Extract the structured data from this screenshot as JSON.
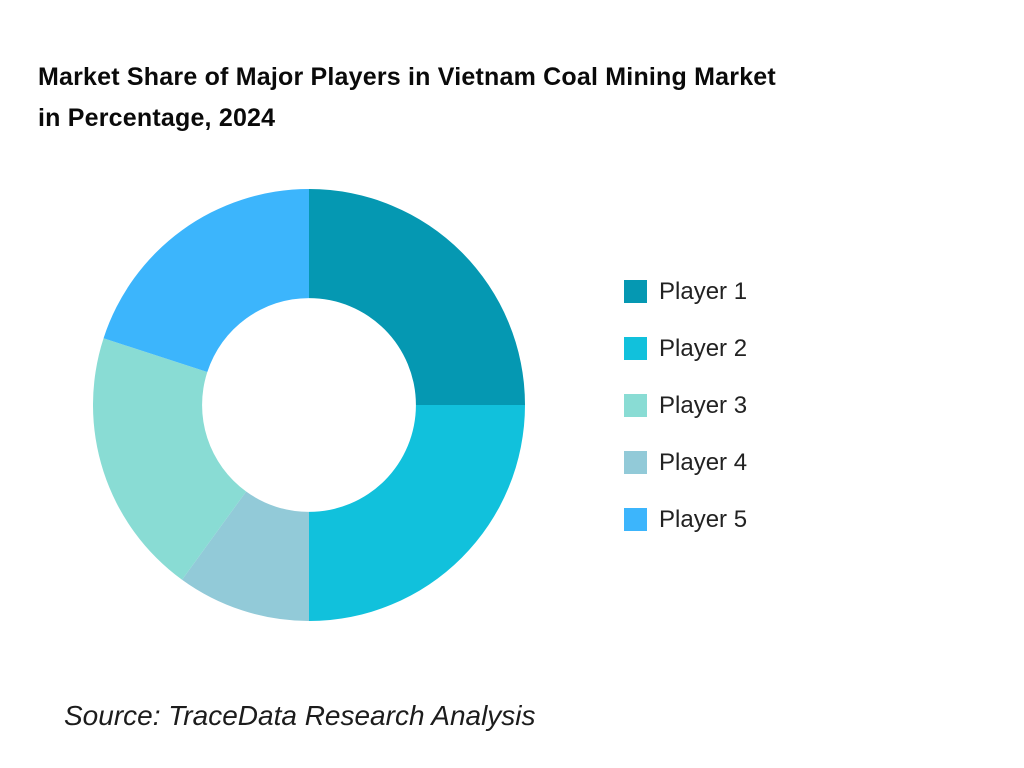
{
  "page": {
    "title_line1": "Market Share of Major Players in Vietnam Coal Mining Market",
    "title_line2": "in Percentage, 2024",
    "source": "Source: TraceData Research Analysis",
    "background_color": "#ffffff",
    "title_color": "#0a0a0a"
  },
  "legend": {
    "position": "right",
    "items": [
      {
        "label": "Player 1",
        "color": "#0598B2"
      },
      {
        "label": "Player 2",
        "color": "#11C1DC"
      },
      {
        "label": "Player 3",
        "color": "#89DCD4"
      },
      {
        "label": "Player 4",
        "color": "#92CAD8"
      },
      {
        "label": "Player 5",
        "color": "#3CB5FC"
      }
    ]
  },
  "chart_data": {
    "type": "pie",
    "variant": "donut",
    "title": "Market Share of Major Players in Vietnam Coal Mining Market in Percentage, 2024",
    "unit": "percent",
    "categories": [
      "Player 1",
      "Player 2",
      "Player 3",
      "Player 4",
      "Player 5"
    ],
    "values": [
      25,
      25,
      20,
      10,
      20
    ],
    "colors": [
      "#0598B2",
      "#11C1DC",
      "#89DCD4",
      "#92CAD8",
      "#3CB5FC"
    ],
    "draw_order_clockwise": [
      "Player 1",
      "Player 2",
      "Player 4",
      "Player 3",
      "Player 5"
    ],
    "start_angle": "top",
    "inner_radius_ratio": 0.495,
    "data_labels": false,
    "legend_position": "right"
  }
}
